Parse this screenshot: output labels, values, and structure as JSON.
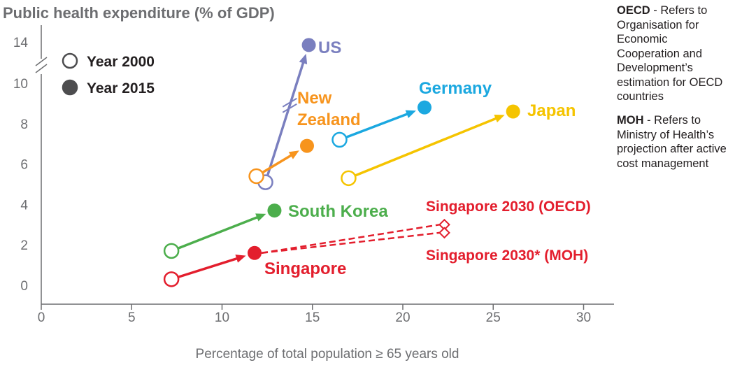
{
  "chart_data": {
    "type": "scatter",
    "title": "Public health expenditure (% of GDP)",
    "xlabel": "Percentage of total population ≥ 65 years old",
    "ylabel": "Public health expenditure (% of GDP)",
    "xlim": [
      0,
      32
    ],
    "ylim": [
      -0.8,
      14.5
    ],
    "axis_break_y": [
      10,
      14
    ],
    "x_ticks": [
      0,
      5,
      10,
      15,
      20,
      25,
      30
    ],
    "y_ticks": [
      0,
      2,
      4,
      6,
      8,
      10,
      14
    ],
    "legend": [
      {
        "label": "Year 2000",
        "marker": "open-circle"
      },
      {
        "label": "Year 2015",
        "marker": "filled-circle"
      }
    ],
    "series": [
      {
        "name": "US",
        "color": "#7a7fbf",
        "points": [
          {
            "year": 2000,
            "x": 12.4,
            "y": 5.1
          },
          {
            "year": 2015,
            "x": 14.8,
            "y": 13.7
          }
        ]
      },
      {
        "name": "New Zealand",
        "color": "#f7941d",
        "points": [
          {
            "year": 2000,
            "x": 11.9,
            "y": 5.4
          },
          {
            "year": 2015,
            "x": 14.7,
            "y": 6.9
          }
        ]
      },
      {
        "name": "Germany",
        "color": "#1ba8e0",
        "points": [
          {
            "year": 2000,
            "x": 16.5,
            "y": 7.2
          },
          {
            "year": 2015,
            "x": 21.2,
            "y": 8.8
          }
        ]
      },
      {
        "name": "Japan",
        "color": "#f5c400",
        "points": [
          {
            "year": 2000,
            "x": 17.0,
            "y": 5.3
          },
          {
            "year": 2015,
            "x": 26.1,
            "y": 8.6
          }
        ]
      },
      {
        "name": "South Korea",
        "color": "#4cae4c",
        "points": [
          {
            "year": 2000,
            "x": 7.2,
            "y": 1.7
          },
          {
            "year": 2015,
            "x": 12.9,
            "y": 3.7
          }
        ]
      },
      {
        "name": "Singapore",
        "color": "#e31e2d",
        "points": [
          {
            "year": 2000,
            "x": 7.2,
            "y": 0.3
          },
          {
            "year": 2015,
            "x": 11.8,
            "y": 1.6
          }
        ]
      }
    ],
    "projections": [
      {
        "name": "Singapore 2030 (OECD)",
        "color": "#e31e2d",
        "from": {
          "x": 11.8,
          "y": 1.6
        },
        "to": {
          "x": 22.3,
          "y": 3.0
        }
      },
      {
        "name": "Singapore 2030* (MOH)",
        "color": "#e31e2d",
        "from": {
          "x": 11.8,
          "y": 1.6
        },
        "to": {
          "x": 22.3,
          "y": 2.6
        }
      }
    ]
  },
  "notes": [
    {
      "term": "OECD",
      "text": " - Refers to Organisation for Economic Cooperation and Development’s estimation for OECD countries"
    },
    {
      "term": "MOH",
      "text": " - Refers to Ministry of Health’s projection after active cost management"
    }
  ]
}
